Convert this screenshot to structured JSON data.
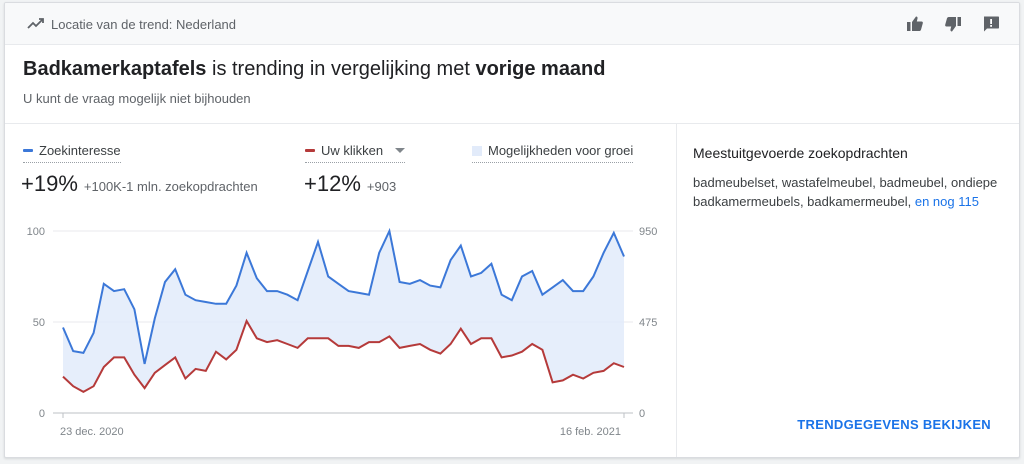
{
  "header": {
    "location_text": "Locatie van de trend: Nederland",
    "icons": [
      "trending-up-icon",
      "thumbs-up-icon",
      "thumbs-down-icon",
      "feedback-icon"
    ]
  },
  "headline": {
    "keyword": "Badkamerkaptafels",
    "middle": " is trending in vergelijking met ",
    "period": "vorige maand"
  },
  "subline": "U kunt de vraag mogelijk niet bijhouden",
  "legend": {
    "search_interest": "Zoekinteresse",
    "your_clicks": "Uw klikken",
    "opportunities": "Mogelijkheden voor groei"
  },
  "stats": {
    "search_pct": "+19%",
    "search_detail": "+100K-1 mln. zoekopdrachten",
    "clicks_pct": "+12%",
    "clicks_detail": "+903"
  },
  "colors": {
    "search": "#3c78d8",
    "clicks": "#b53a3a",
    "opportunity_fill": "#e2ebfa",
    "link": "#1a73e8"
  },
  "chart_data": {
    "type": "line",
    "x_start_label": "23 dec. 2020",
    "x_end_label": "16 feb. 2021",
    "y_left_ticks": [
      "100",
      "50",
      "0"
    ],
    "y_left_range": [
      0,
      100
    ],
    "y_right_ticks": [
      "950",
      "475",
      "0"
    ],
    "y_right_range": [
      0,
      950
    ],
    "series": [
      {
        "name": "Zoekinteresse",
        "axis": "left",
        "values": [
          47,
          34,
          33,
          44,
          71,
          67,
          68,
          57,
          27,
          52,
          72,
          79,
          65,
          62,
          61,
          60,
          60,
          70,
          88,
          74,
          67,
          67,
          65,
          62,
          78,
          94,
          75,
          71,
          67,
          66,
          65,
          88,
          100,
          72,
          71,
          73,
          70,
          69,
          84,
          92,
          75,
          77,
          82,
          65,
          62,
          75,
          78,
          65,
          69,
          73,
          67,
          67,
          75,
          88,
          99,
          86
        ]
      },
      {
        "name": "Uw klikken",
        "axis": "right",
        "values": [
          190,
          140,
          110,
          140,
          240,
          290,
          290,
          200,
          130,
          210,
          250,
          290,
          180,
          230,
          220,
          320,
          280,
          330,
          480,
          390,
          370,
          380,
          360,
          340,
          390,
          390,
          390,
          350,
          350,
          340,
          370,
          370,
          400,
          340,
          350,
          360,
          330,
          310,
          360,
          440,
          360,
          390,
          390,
          290,
          300,
          320,
          360,
          330,
          160,
          170,
          200,
          180,
          210,
          220,
          260,
          240
        ]
      }
    ]
  },
  "side": {
    "title": "Meestuitgevoerde zoekopdrachten",
    "queries": "badmeubelset, wastafelmeubel, badmeubel, ondiepe badkamermeubels, badkamermeubel,",
    "more_link": "en nog 115",
    "cta": "TRENDGEGEVENS BEKIJKEN"
  }
}
